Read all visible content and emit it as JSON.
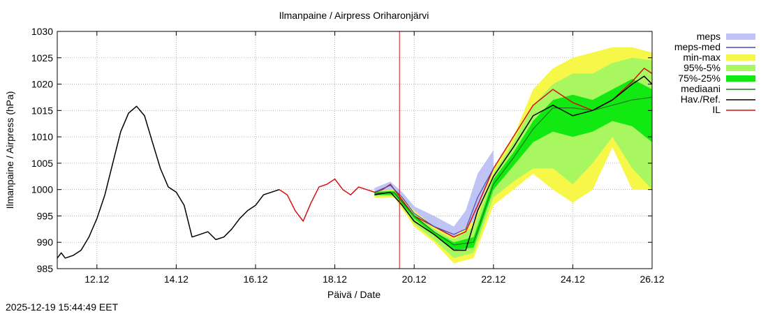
{
  "chart_data": {
    "type": "area",
    "title": "Ilmanpaine / Airpress Oriharonjärvi",
    "xlabel": "Päivä / Date",
    "ylabel": "Ilmanpaine / Airpress (hPa)",
    "timestamp": "2025-12-19 15:44:49 EET",
    "x_unit": "days since 2025-12-11 00:00 (11.12 = 0)",
    "xlim": [
      0,
      15
    ],
    "ylim": [
      985,
      1030
    ],
    "grid": true,
    "x_ticks": [
      {
        "x": 1,
        "label": "12.12"
      },
      {
        "x": 3,
        "label": "14.12"
      },
      {
        "x": 5,
        "label": "16.12"
      },
      {
        "x": 7,
        "label": "18.12"
      },
      {
        "x": 9,
        "label": "20.12"
      },
      {
        "x": 11,
        "label": "22.12"
      },
      {
        "x": 13,
        "label": "24.12"
      },
      {
        "x": 15,
        "label": "26.12"
      }
    ],
    "y_ticks": [
      985,
      990,
      995,
      1000,
      1005,
      1010,
      1015,
      1020,
      1025,
      1030
    ],
    "now_line_x": 8.63,
    "legend": [
      {
        "label": "meps",
        "kind": "band",
        "color": "#c0c4f4"
      },
      {
        "label": "meps-med",
        "kind": "line",
        "color": "#4a4ab8"
      },
      {
        "label": "min-max",
        "kind": "band",
        "color": "#f7f74a"
      },
      {
        "label": "95%-5%",
        "kind": "band",
        "color": "#a8f760"
      },
      {
        "label": "75%-25%",
        "kind": "band",
        "color": "#12e812"
      },
      {
        "label": "mediaani",
        "kind": "line",
        "color": "#1a7a1a"
      },
      {
        "label": "Hav./Ref.",
        "kind": "line",
        "color": "#000000"
      },
      {
        "label": "IL",
        "kind": "line",
        "color": "#d41010"
      }
    ],
    "bands": [
      {
        "name": "meps",
        "color": "#c0c4f4",
        "x": [
          8.0,
          8.4,
          8.7,
          9.0,
          9.5,
          10.0,
          10.3,
          10.6,
          11.0
        ],
        "low": [
          999.0,
          999.8,
          997.5,
          994.5,
          992.0,
          990.0,
          990.5,
          996.0,
          1004.0
        ],
        "high": [
          1000.3,
          1001.5,
          999.5,
          996.8,
          995.0,
          993.0,
          996.0,
          1003.0,
          1007.5
        ]
      },
      {
        "name": "min-max",
        "color": "#f7f74a",
        "x": [
          8.0,
          8.5,
          9.0,
          9.5,
          10.0,
          10.5,
          11.0,
          11.5,
          12.0,
          12.5,
          13.0,
          13.5,
          14.0,
          14.5,
          15.0
        ],
        "low": [
          998.5,
          998.5,
          993.0,
          990.0,
          986.0,
          987.0,
          997.0,
          1000.0,
          1003.0,
          1000.0,
          997.5,
          1000.0,
          1008.0,
          1000.0,
          1000.0
        ],
        "high": [
          999.8,
          1000.0,
          996.0,
          993.0,
          991.0,
          994.0,
          1004.0,
          1010.0,
          1019.0,
          1023.0,
          1025.0,
          1026.0,
          1027.0,
          1027.0,
          1026.0
        ]
      },
      {
        "name": "95%-5%",
        "color": "#a8f760",
        "x": [
          8.0,
          8.5,
          9.0,
          9.5,
          10.0,
          10.5,
          11.0,
          11.5,
          12.0,
          12.5,
          13.0,
          13.5,
          14.0,
          14.5,
          15.0
        ],
        "low": [
          998.8,
          998.8,
          993.5,
          990.5,
          987.0,
          988.0,
          998.5,
          1001.5,
          1004.0,
          1004.0,
          1001.0,
          1005.0,
          1010.0,
          1004.0,
          1000.0
        ],
        "high": [
          999.7,
          999.9,
          995.5,
          992.5,
          990.5,
          993.0,
          1003.0,
          1009.0,
          1016.0,
          1020.0,
          1022.0,
          1022.0,
          1024.0,
          1025.0,
          1024.5
        ]
      },
      {
        "name": "75%-25%",
        "color": "#12e812",
        "x": [
          8.0,
          8.5,
          9.0,
          9.5,
          10.0,
          10.5,
          11.0,
          11.5,
          12.0,
          12.5,
          13.0,
          13.5,
          14.0,
          14.5,
          15.0
        ],
        "low": [
          999.0,
          999.0,
          994.5,
          991.5,
          988.5,
          989.0,
          1000.0,
          1004.5,
          1009.0,
          1011.0,
          1010.0,
          1011.0,
          1013.0,
          1012.0,
          1009.0
        ],
        "high": [
          999.6,
          999.7,
          995.2,
          992.0,
          990.0,
          991.0,
          1002.0,
          1007.0,
          1013.0,
          1017.0,
          1018.0,
          1017.0,
          1019.0,
          1021.0,
          1019.0
        ]
      }
    ],
    "series": [
      {
        "name": "Hav./Ref.",
        "color": "#000000",
        "width": 1.5,
        "x": [
          0,
          0.1,
          0.2,
          0.4,
          0.6,
          0.8,
          1.0,
          1.2,
          1.4,
          1.6,
          1.8,
          2.0,
          2.2,
          2.4,
          2.6,
          2.8,
          3.0,
          3.2,
          3.4,
          3.6,
          3.8,
          4.0,
          4.2,
          4.4,
          4.6,
          4.8,
          5.0,
          5.2,
          5.4,
          5.6
        ],
        "y": [
          987.0,
          988.0,
          987.0,
          987.5,
          988.5,
          991.0,
          994.5,
          999.0,
          1005.0,
          1011.0,
          1014.5,
          1015.8,
          1014.0,
          1009.0,
          1004.0,
          1000.5,
          999.5,
          997.0,
          991.0,
          991.5,
          992.0,
          990.5,
          991.0,
          992.5,
          994.5,
          996.0,
          997.0,
          999.0,
          999.5,
          1000.0
        ]
      },
      {
        "name": "IL",
        "color": "#d41010",
        "width": 1.5,
        "x": [
          5.6,
          5.8,
          6.0,
          6.2,
          6.4,
          6.6,
          6.8,
          7.0,
          7.2,
          7.4,
          7.6,
          7.8,
          8.0,
          8.2,
          8.4,
          8.7,
          9.0,
          9.5,
          10.0,
          10.3,
          10.6,
          11.0,
          11.5,
          12.0,
          12.5,
          13.0,
          13.5,
          14.0,
          14.5,
          14.8,
          15.0
        ],
        "y": [
          1000.0,
          999.0,
          996.0,
          994.0,
          997.5,
          1000.5,
          1001.0,
          1002.0,
          1000.0,
          999.0,
          1000.5,
          1000.0,
          999.5,
          1000.0,
          1001.0,
          998.0,
          995.0,
          993.0,
          991.0,
          992.0,
          997.0,
          1004.0,
          1010.0,
          1016.0,
          1019.0,
          1016.5,
          1015.0,
          1017.0,
          1020.5,
          1023.0,
          1022.0
        ]
      },
      {
        "name": "meps-med",
        "color": "#4a4ab8",
        "width": 1.2,
        "x": [
          8.0,
          8.4,
          8.7,
          9.0,
          9.5,
          10.0,
          10.3,
          10.6,
          11.0
        ],
        "y": [
          999.5,
          1000.8,
          998.5,
          995.5,
          993.0,
          991.5,
          992.5,
          998.5,
          1004.0
        ]
      },
      {
        "name": "mediaani",
        "color": "#1a7a1a",
        "width": 1.2,
        "x": [
          8.0,
          8.5,
          9.0,
          9.5,
          10.0,
          10.5,
          11.0,
          11.5,
          12.0,
          12.5,
          13.0,
          13.5,
          14.0,
          14.5,
          15.0
        ],
        "y": [
          999.3,
          999.4,
          995.0,
          992.0,
          989.5,
          990.0,
          1001.0,
          1006.0,
          1011.5,
          1015.5,
          1015.5,
          1015.0,
          1016.0,
          1017.0,
          1017.5
        ]
      },
      {
        "name": "Hav./Ref. forecast",
        "color": "#000000",
        "width": 1.5,
        "x": [
          8.0,
          8.4,
          8.7,
          9.0,
          9.5,
          10.0,
          10.3,
          10.6,
          11.0,
          11.5,
          12.0,
          12.5,
          13.0,
          13.5,
          14.0,
          14.5,
          14.8,
          15.0
        ],
        "y": [
          999.0,
          999.5,
          997.0,
          994.0,
          991.5,
          988.5,
          988.5,
          996.0,
          1002.5,
          1008.0,
          1014.0,
          1016.0,
          1014.0,
          1015.0,
          1017.0,
          1020.0,
          1021.5,
          1020.0
        ]
      }
    ]
  }
}
